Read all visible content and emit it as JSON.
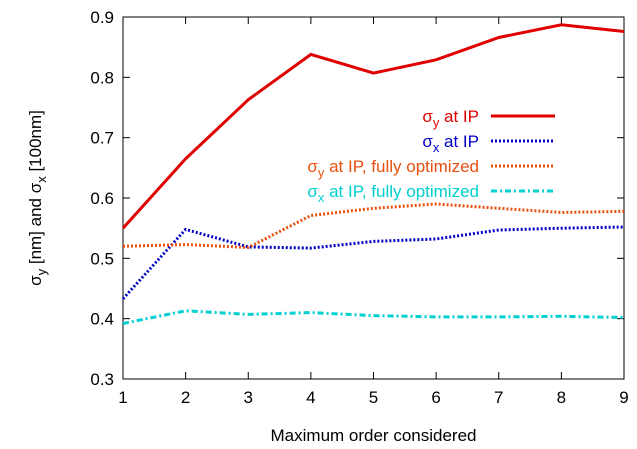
{
  "chart_data": {
    "type": "line",
    "xlabel": "Maximum order considered",
    "ylabel_parts": [
      {
        "text": "σ",
        "sub": false
      },
      {
        "text": "y",
        "sub": true
      },
      {
        "text": " [nm] and  σ",
        "sub": false
      },
      {
        "text": "x",
        "sub": true
      },
      {
        "text": " [100nm]",
        "sub": false
      }
    ],
    "xlim": [
      1,
      9
    ],
    "ylim": [
      0.3,
      0.9
    ],
    "x_ticks": [
      1,
      2,
      3,
      4,
      5,
      6,
      7,
      8,
      9
    ],
    "y_ticks": [
      0.3,
      0.4,
      0.5,
      0.6,
      0.7,
      0.8,
      0.9
    ],
    "x_tick_labels": [
      "1",
      "2",
      "3",
      "4",
      "5",
      "6",
      "7",
      "8",
      "9"
    ],
    "y_tick_labels": [
      "0.3",
      "0.4",
      "0.5",
      "0.6",
      "0.7",
      "0.8",
      "0.9"
    ],
    "legend_position": "top-right",
    "grid": false,
    "x": [
      1,
      2,
      3,
      4,
      5,
      6,
      7,
      8,
      9
    ],
    "series": [
      {
        "name_parts": [
          {
            "text": "σ",
            "sub": false
          },
          {
            "text": "y",
            "sub": true
          },
          {
            "text": " at IP",
            "sub": false
          }
        ],
        "color": "#e00000",
        "style": "solid",
        "values": [
          0.55,
          0.665,
          0.763,
          0.838,
          0.807,
          0.829,
          0.866,
          0.887,
          0.876
        ]
      },
      {
        "name_parts": [
          {
            "text": "σ",
            "sub": false
          },
          {
            "text": "x",
            "sub": true
          },
          {
            "text": "  at IP",
            "sub": false
          }
        ],
        "color": "#0000c8",
        "style": "dotted",
        "values": [
          0.433,
          0.548,
          0.519,
          0.517,
          0.528,
          0.532,
          0.547,
          0.55,
          0.552
        ]
      },
      {
        "name_parts": [
          {
            "text": "σ",
            "sub": false
          },
          {
            "text": "y",
            "sub": true
          },
          {
            "text": " at IP, fully optimized",
            "sub": false
          }
        ],
        "color": "#e85010",
        "style": "dotted",
        "values": [
          0.52,
          0.523,
          0.518,
          0.571,
          0.583,
          0.59,
          0.583,
          0.576,
          0.578
        ]
      },
      {
        "name_parts": [
          {
            "text": "σ",
            "sub": false
          },
          {
            "text": "x",
            "sub": true
          },
          {
            "text": "  at IP, fully optimized",
            "sub": false
          }
        ],
        "color": "#00d0d0",
        "style": "dashdot",
        "values": [
          0.392,
          0.413,
          0.407,
          0.41,
          0.405,
          0.403,
          0.403,
          0.404,
          0.402
        ]
      }
    ]
  }
}
